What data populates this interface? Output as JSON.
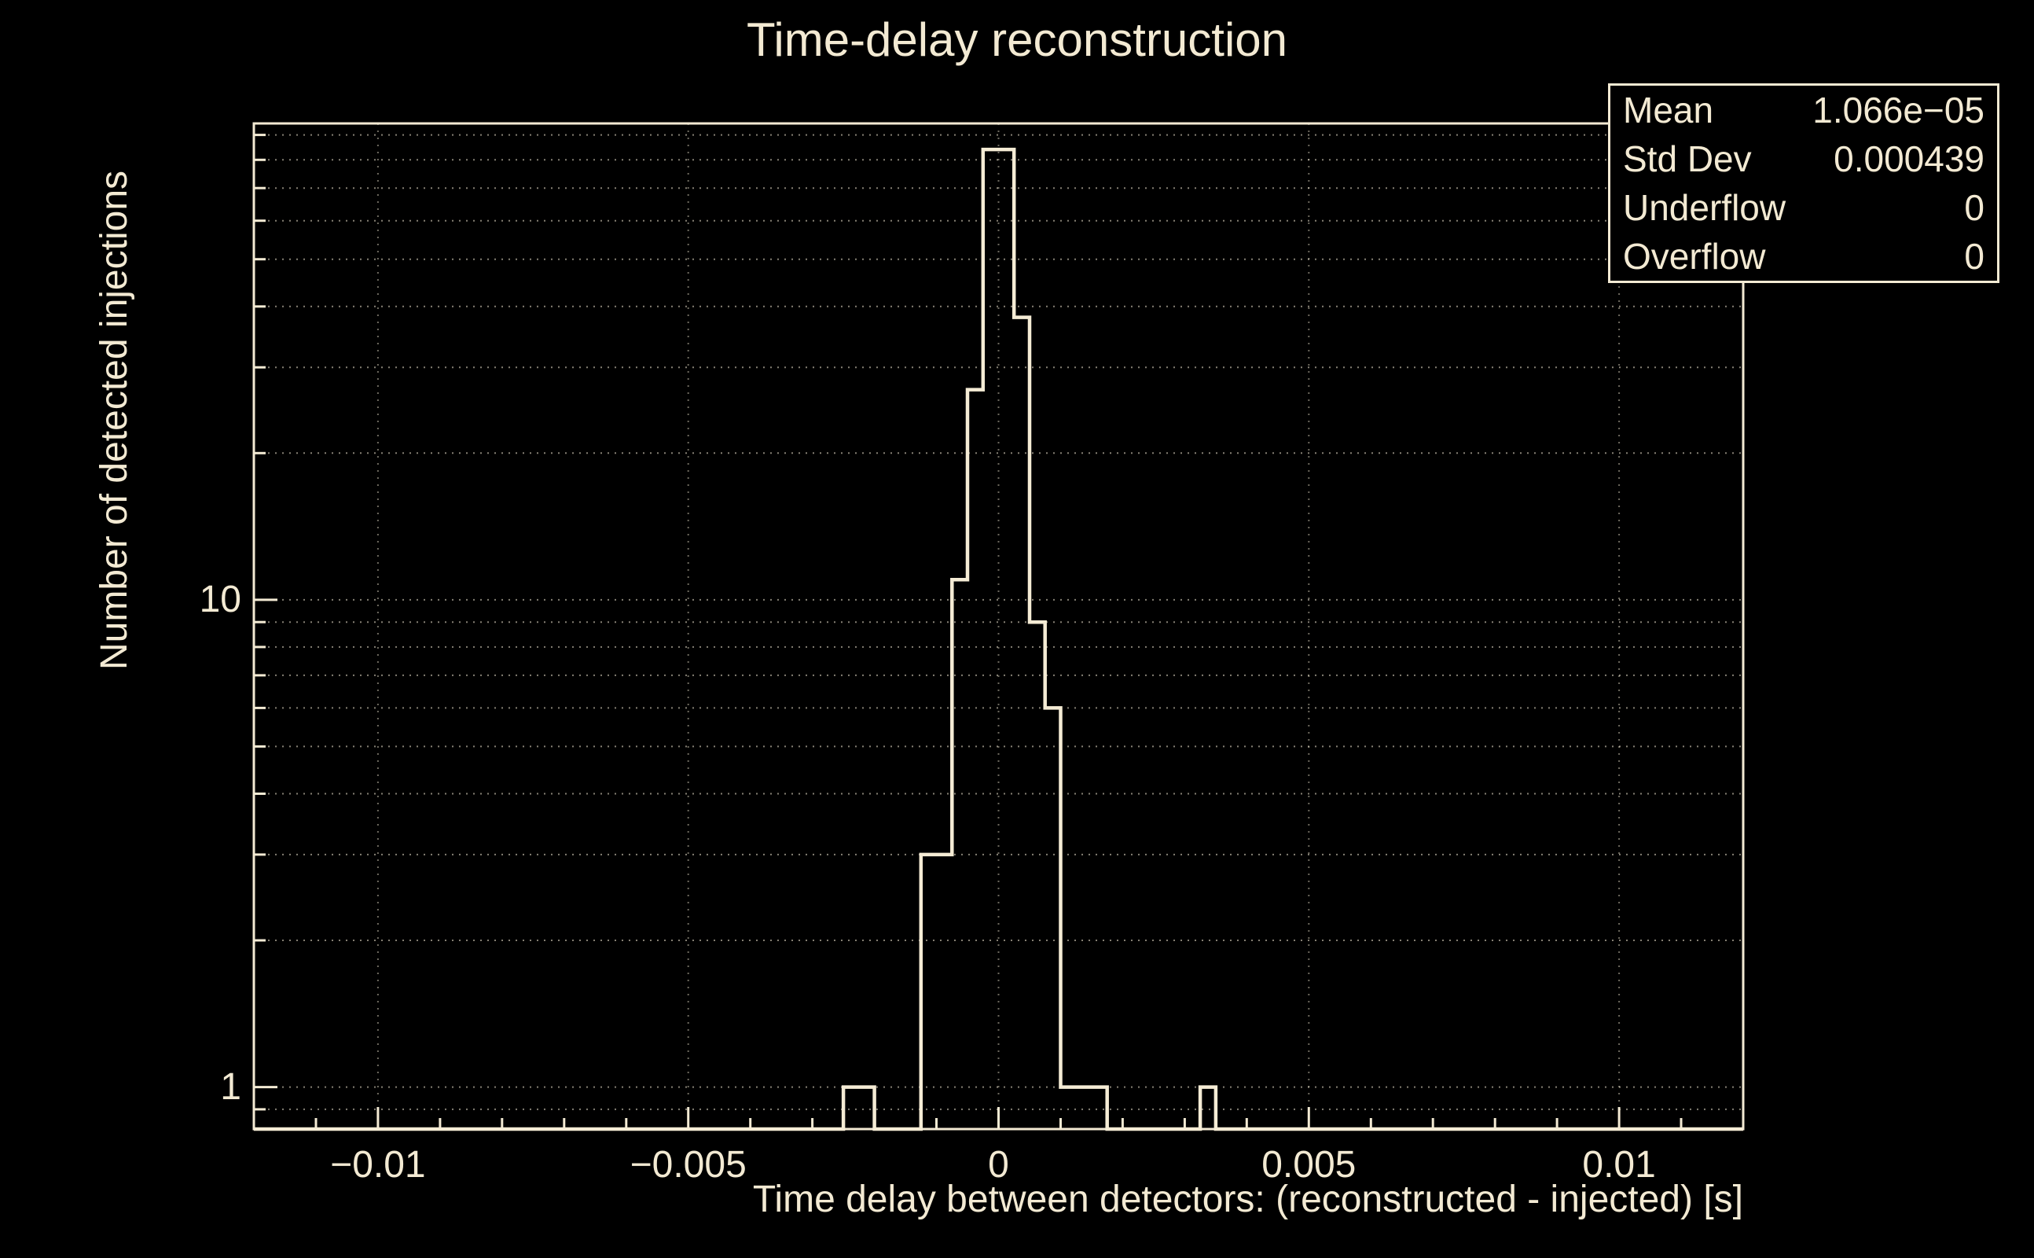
{
  "page": {
    "background": "#000000",
    "foreground": "#f3ead3"
  },
  "title": "Time-delay reconstruction",
  "stats_box": {
    "rows": [
      {
        "label": "Mean",
        "value": "1.066e−05"
      },
      {
        "label": "Std Dev",
        "value": "0.000439"
      },
      {
        "label": "Underflow",
        "value": "0"
      },
      {
        "label": "Overflow",
        "value": "0"
      }
    ]
  },
  "chart_data": {
    "type": "histogram",
    "title": "Time-delay reconstruction",
    "xlabel": "Time delay between detectors: (reconstructed - injected) [s]",
    "ylabel": "Number of detected injections",
    "x_range": [
      -0.012,
      0.012
    ],
    "y_scale": "log",
    "y_range": [
      0.82,
      95
    ],
    "x_major_ticks": [
      -0.01,
      -0.005,
      0,
      0.005,
      0.01
    ],
    "x_tick_labels": [
      "−0.01",
      "−0.005",
      "0",
      "0.005",
      "0.01"
    ],
    "x_minor_tick_step": 0.001,
    "y_major_ticks": [
      1,
      10
    ],
    "y_tick_labels": [
      "1",
      "10"
    ],
    "grid": true,
    "legend": "none",
    "line_color": "#f5ecd5",
    "bin_width": 0.00025,
    "bins": [
      {
        "x0": -0.0025,
        "count": 1
      },
      {
        "x0": -0.00225,
        "count": 1
      },
      {
        "x0": -0.00125,
        "count": 3
      },
      {
        "x0": -0.001,
        "count": 3
      },
      {
        "x0": -0.00075,
        "count": 11
      },
      {
        "x0": -0.0005,
        "count": 27
      },
      {
        "x0": -0.00025,
        "count": 84
      },
      {
        "x0": 0.0,
        "count": 84
      },
      {
        "x0": 0.00025,
        "count": 38
      },
      {
        "x0": 0.0005,
        "count": 9
      },
      {
        "x0": 0.00075,
        "count": 6
      },
      {
        "x0": 0.001,
        "count": 1
      },
      {
        "x0": 0.00125,
        "count": 1
      },
      {
        "x0": 0.0015,
        "count": 1
      },
      {
        "x0": 0.00325,
        "count": 1
      }
    ]
  }
}
